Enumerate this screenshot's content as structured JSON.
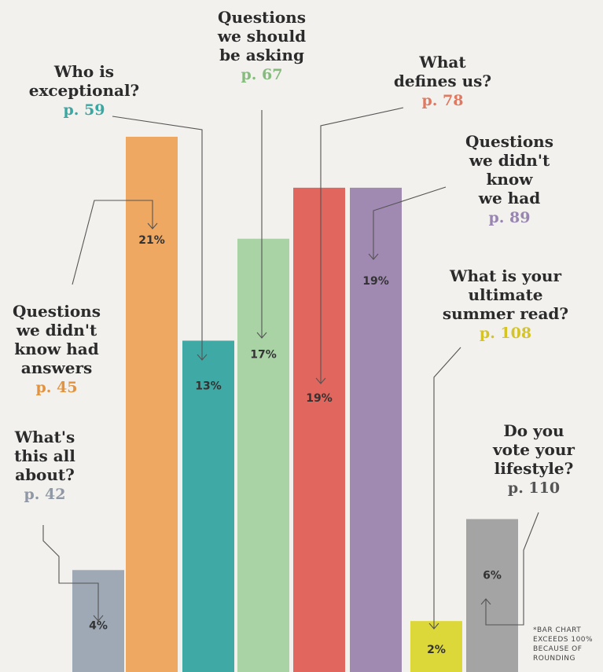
{
  "chart_data": {
    "type": "bar",
    "ylabel": "",
    "xlabel": "",
    "ylim": [
      0,
      25
    ],
    "categories": [
      "What's this all about?",
      "Questions we didn't know had answers",
      "Who is exceptional?",
      "Questions we should be asking",
      "What defines us?",
      "Questions we didn't know we had",
      "What is your ultimate summer read?",
      "Do you vote your lifestyle?"
    ],
    "values": [
      4,
      21,
      13,
      17,
      19,
      19,
      2,
      6
    ],
    "value_labels": [
      "4%",
      "21%",
      "13%",
      "17%",
      "19%",
      "19%",
      "2%",
      "6%"
    ],
    "bars": [
      {
        "title_lines": [
          "What's",
          "this all",
          "about?"
        ],
        "page": "p. 42",
        "color": "#9ea9b5",
        "page_color": "#8f98a4"
      },
      {
        "title_lines": [
          "Questions",
          "we didn't",
          "know had",
          "answers"
        ],
        "page": "p. 45",
        "color": "#efa862",
        "page_color": "#e3933f"
      },
      {
        "title_lines": [
          "Who is",
          "exceptional?"
        ],
        "page": "p. 59",
        "color": "#3fa9a6",
        "page_color": "#3aa7a3"
      },
      {
        "title_lines": [
          "Questions",
          "we should",
          "be asking"
        ],
        "page": "p. 67",
        "color": "#a9d3a5",
        "page_color": "#86bb7e"
      },
      {
        "title_lines": [
          "What",
          "defines us?"
        ],
        "page": "p. 78",
        "color": "#e0665e",
        "page_color": "#e0795f"
      },
      {
        "title_lines": [
          "Questions",
          "we didn't",
          "know",
          "we had"
        ],
        "page": "p. 89",
        "color": "#a18ab2",
        "page_color": "#9886b0"
      },
      {
        "title_lines": [
          "What is your",
          "ultimate",
          "summer read?"
        ],
        "page": "p. 108",
        "color": "#ddd83a",
        "page_color": "#d5c422"
      },
      {
        "title_lines": [
          "Do you",
          "vote your",
          "lifestyle?"
        ],
        "page": "p. 110",
        "color": "#a4a4a4",
        "page_color": "#555555"
      }
    ]
  },
  "footnote_lines": [
    "*BAR CHART",
    "EXCEEDS 100%",
    "BECAUSE OF",
    "ROUNDING"
  ]
}
